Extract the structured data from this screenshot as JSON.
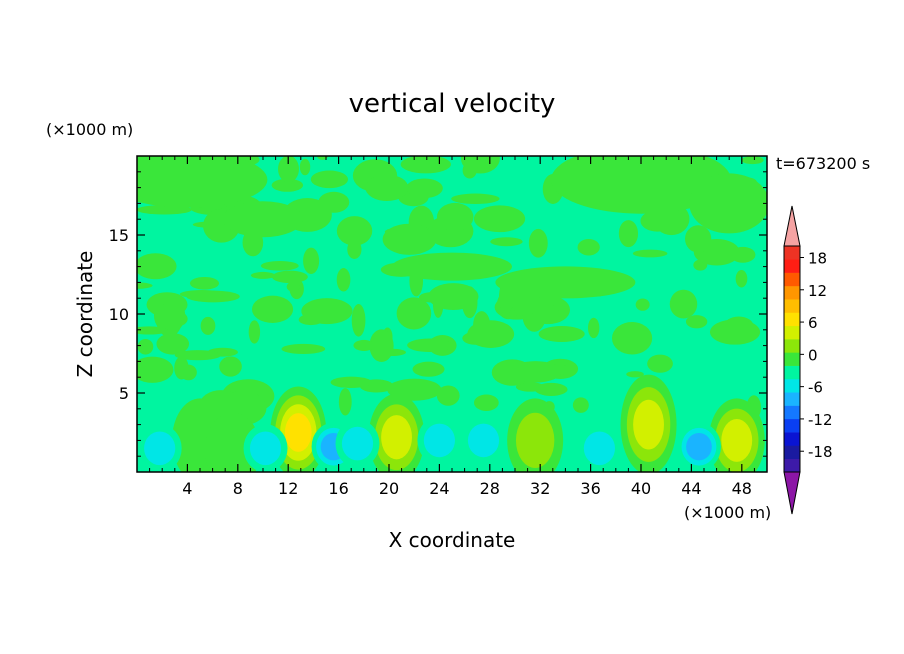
{
  "chart_data": {
    "type": "heatmap",
    "title": "vertical velocity",
    "xlabel": "X coordinate",
    "ylabel": "Z coordinate",
    "x_unit": "(×1000 m)",
    "y_unit": "(×1000 m)",
    "time_label": "t=673200 s",
    "xlim": [
      0,
      50
    ],
    "ylim": [
      0,
      20
    ],
    "x_ticks": [
      "4",
      "8",
      "12",
      "16",
      "20",
      "24",
      "28",
      "32",
      "36",
      "40",
      "44",
      "48"
    ],
    "y_ticks": [
      "5",
      "10",
      "15"
    ],
    "colorbar": {
      "levels": [
        -21,
        -18,
        -15,
        -12,
        -9,
        -6,
        -3,
        0,
        3,
        6,
        9,
        12,
        15,
        18,
        21
      ],
      "tick_labels": [
        "18",
        "12",
        "6",
        "0",
        "-6",
        "-12",
        "-18"
      ],
      "colors": [
        "#3d1aa8",
        "#1a1aa0",
        "#0a14d2",
        "#0a3ff2",
        "#1478ff",
        "#1ab4ff",
        "#00e6e6",
        "#00f5a0",
        "#3ae63a",
        "#8ce60a",
        "#d2f000",
        "#ffe100",
        "#ffbe00",
        "#ff9600",
        "#ff5a00",
        "#ff1e14",
        "#ee3324"
      ],
      "over_color": "#f5a3a3",
      "under_color": "#8c16a6"
    },
    "features": [
      {
        "kind": "updraft",
        "x": 12.8,
        "z": 2.5,
        "peak": 10
      },
      {
        "kind": "updraft",
        "x": 20.6,
        "z": 2.2,
        "peak": 8
      },
      {
        "kind": "updraft",
        "x": 31.6,
        "z": 2.0,
        "peak": 6
      },
      {
        "kind": "updraft",
        "x": 40.6,
        "z": 3.0,
        "peak": 9
      },
      {
        "kind": "updraft",
        "x": 47.6,
        "z": 2.0,
        "peak": 7
      },
      {
        "kind": "updraft",
        "x": 5.0,
        "z": 2.0,
        "peak": 3
      },
      {
        "kind": "updraft",
        "x": 7.6,
        "z": 1.4,
        "peak": 3
      },
      {
        "kind": "downdraft",
        "x": 1.8,
        "z": 1.5,
        "peak": -6
      },
      {
        "kind": "downdraft",
        "x": 10.2,
        "z": 1.5,
        "peak": -5
      },
      {
        "kind": "downdraft",
        "x": 15.6,
        "z": 1.6,
        "peak": -7
      },
      {
        "kind": "downdraft",
        "x": 17.5,
        "z": 1.8,
        "peak": -4
      },
      {
        "kind": "downdraft",
        "x": 24.0,
        "z": 2.0,
        "peak": -4
      },
      {
        "kind": "downdraft",
        "x": 27.5,
        "z": 2.0,
        "peak": -4
      },
      {
        "kind": "downdraft",
        "x": 36.7,
        "z": 1.5,
        "peak": -6
      },
      {
        "kind": "downdraft",
        "x": 44.6,
        "z": 1.6,
        "peak": -7
      }
    ]
  }
}
